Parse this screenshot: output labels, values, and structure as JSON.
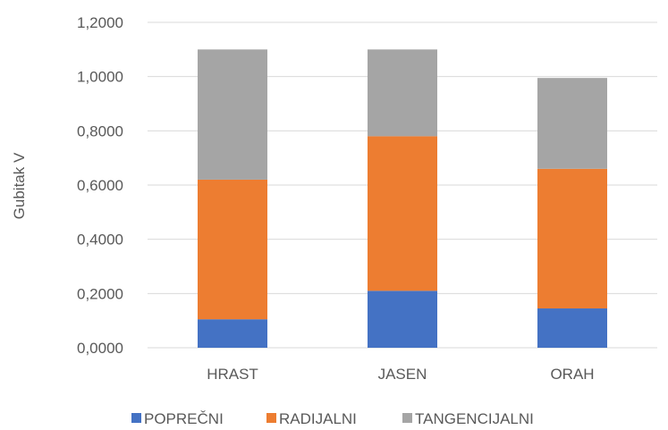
{
  "chart_data": {
    "type": "bar",
    "stacked": true,
    "categories": [
      "HRAST",
      "JASEN",
      "ORAH"
    ],
    "series": [
      {
        "name": "POPREČNI",
        "color": "#4472C4",
        "values": [
          0.105,
          0.21,
          0.145
        ]
      },
      {
        "name": "RADIJALNI",
        "color": "#ED7D31",
        "values": [
          0.515,
          0.57,
          0.515
        ]
      },
      {
        "name": "TANGENCIJALNI",
        "color": "#A5A5A5",
        "values": [
          0.48,
          0.32,
          0.335
        ]
      }
    ],
    "title": "",
    "xlabel": "",
    "ylabel": "Gubitak V",
    "ylim": [
      0,
      1.2
    ],
    "yticks": [
      "0,0000",
      "0,2000",
      "0,4000",
      "0,6000",
      "0,8000",
      "1,0000",
      "1,2000"
    ],
    "grid": true,
    "legend": "bottom"
  }
}
